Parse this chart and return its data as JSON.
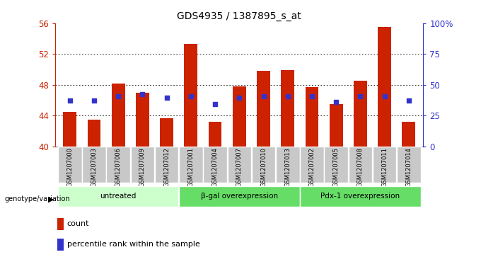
{
  "title": "GDS4935 / 1387895_s_at",
  "samples": [
    "GSM1207000",
    "GSM1207003",
    "GSM1207006",
    "GSM1207009",
    "GSM1207012",
    "GSM1207001",
    "GSM1207004",
    "GSM1207007",
    "GSM1207010",
    "GSM1207013",
    "GSM1207002",
    "GSM1207005",
    "GSM1207008",
    "GSM1207011",
    "GSM1207014"
  ],
  "bar_values": [
    44.5,
    43.5,
    48.2,
    47.0,
    43.7,
    53.3,
    43.2,
    47.8,
    49.8,
    49.9,
    47.7,
    45.5,
    48.5,
    55.5,
    43.2
  ],
  "dot_values": [
    46.0,
    46.0,
    46.5,
    46.8,
    46.3,
    46.5,
    45.5,
    46.3,
    46.5,
    46.5,
    46.5,
    45.8,
    46.5,
    46.5,
    46.0
  ],
  "groups": [
    {
      "label": "untreated",
      "start": 0,
      "end": 5
    },
    {
      "label": "β-gal overexpression",
      "start": 5,
      "end": 10
    },
    {
      "label": "Pdx-1 overexpression",
      "start": 10,
      "end": 15
    }
  ],
  "group_colors": [
    "#ccffcc",
    "#66dd66",
    "#66dd66"
  ],
  "bar_color": "#cc2200",
  "dot_color": "#3333cc",
  "ymin": 40,
  "ymax": 56,
  "yticks": [
    40,
    44,
    48,
    52,
    56
  ],
  "ytick_labels": [
    "40",
    "44",
    "48",
    "52",
    "56"
  ],
  "grid_values": [
    44,
    48,
    52
  ],
  "right_ytick_labels": [
    "0",
    "25",
    "50",
    "75",
    "100%"
  ],
  "right_ytick_percentiles": [
    0,
    25,
    50,
    75,
    100
  ],
  "bar_color_hex": "#cc2200",
  "dot_color_hex": "#3333cc",
  "legend_count_label": "count",
  "legend_percentile_label": "percentile rank within the sample",
  "genotype_label": "genotype/variation"
}
